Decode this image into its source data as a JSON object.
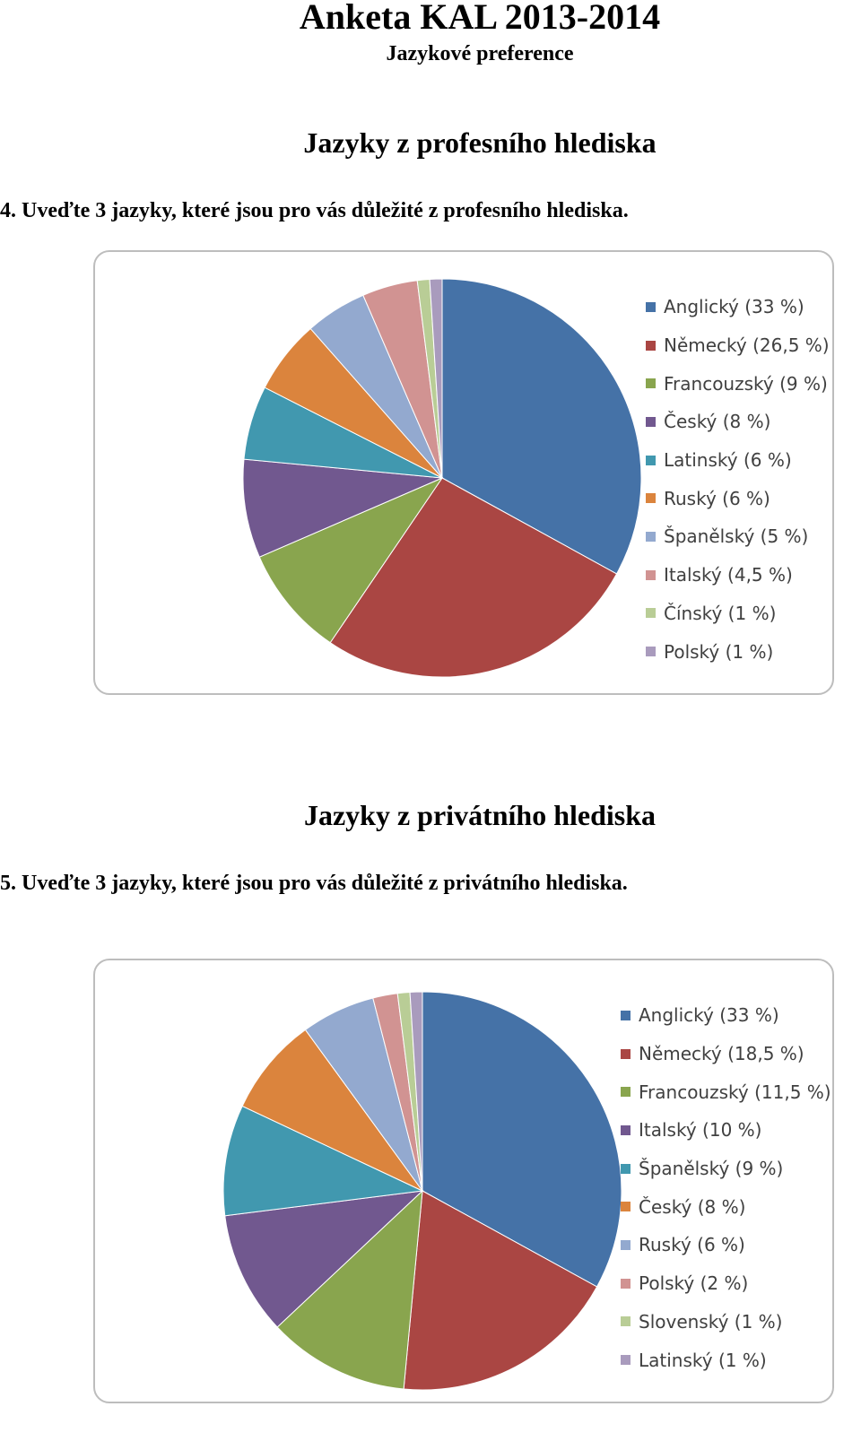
{
  "header": {
    "title": "Anketa KAL 2013-2014",
    "subtitle": "Jazykové preference"
  },
  "section1": {
    "heading": "Jazyky z profesního hlediska",
    "question": "4.  Uveďte 3 jazyky, které jsou pro vás důležité z profesního hlediska."
  },
  "section2": {
    "heading": "Jazyky z privátního hlediska",
    "question": "5.  Uveďte 3 jazyky, které jsou pro vás důležité z privátního hlediska."
  },
  "chart_data": [
    {
      "type": "pie",
      "legend_position": "right",
      "slices": [
        {
          "label": "Anglický (33 %)",
          "value": 33,
          "color": "#4572a7"
        },
        {
          "label": "Německý (26,5 %)",
          "value": 26.5,
          "color": "#aa4643"
        },
        {
          "label": "Francouzský (9 %)",
          "value": 9,
          "color": "#89a54e"
        },
        {
          "label": "Český (8 %)",
          "value": 8,
          "color": "#71588f"
        },
        {
          "label": "Latinský (6 %)",
          "value": 6,
          "color": "#4198af"
        },
        {
          "label": "Ruský (6 %)",
          "value": 6,
          "color": "#db843d"
        },
        {
          "label": "Španělský (5 %)",
          "value": 5,
          "color": "#93a9cf"
        },
        {
          "label": "Italský (4,5 %)",
          "value": 4.5,
          "color": "#d19392"
        },
        {
          "label": "Čínský (1 %)",
          "value": 1,
          "color": "#b9cd96"
        },
        {
          "label": "Polský (1 %)",
          "value": 1,
          "color": "#a99bbd"
        }
      ]
    },
    {
      "type": "pie",
      "legend_position": "right",
      "slices": [
        {
          "label": "Anglický (33 %)",
          "value": 33,
          "color": "#4572a7"
        },
        {
          "label": "Německý (18,5 %)",
          "value": 18.5,
          "color": "#aa4643"
        },
        {
          "label": "Francouzský (11,5 %)",
          "value": 11.5,
          "color": "#89a54e"
        },
        {
          "label": "Italský (10 %)",
          "value": 10,
          "color": "#71588f"
        },
        {
          "label": "Španělský (9 %)",
          "value": 9,
          "color": "#4198af"
        },
        {
          "label": "Český (8 %)",
          "value": 8,
          "color": "#db843d"
        },
        {
          "label": "Ruský (6 %)",
          "value": 6,
          "color": "#93a9cf"
        },
        {
          "label": "Polský (2 %)",
          "value": 2,
          "color": "#d19392"
        },
        {
          "label": "Slovenský (1 %)",
          "value": 1,
          "color": "#b9cd96"
        },
        {
          "label": "Latinský (1 %)",
          "value": 1,
          "color": "#a99bbd"
        }
      ]
    }
  ]
}
